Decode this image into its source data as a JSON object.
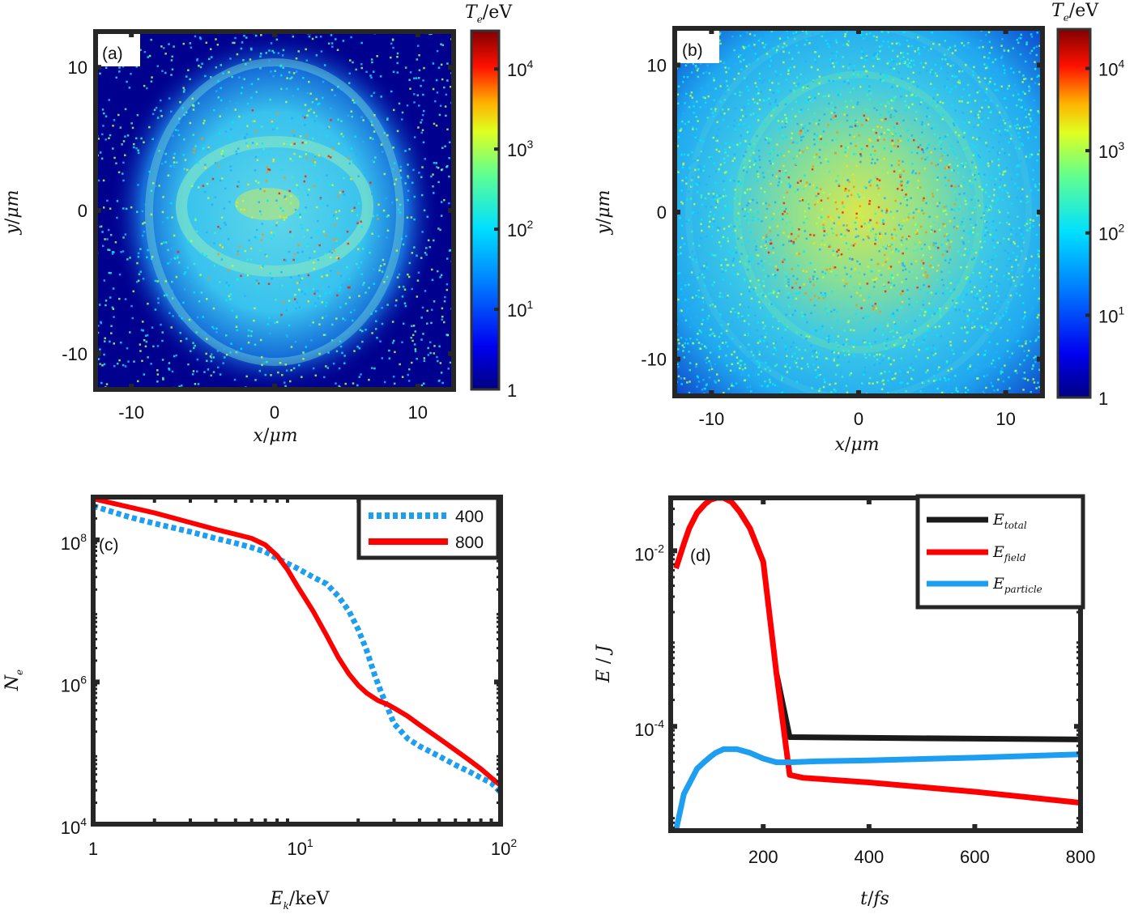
{
  "chart_data": [
    {
      "panel": "a",
      "type": "heatmap",
      "panel_label": "(a)",
      "xlabel": "x/μm",
      "ylabel": "y/μm",
      "xlim": [
        -12.5,
        12.5
      ],
      "ylim": [
        -12.5,
        12.5
      ],
      "xticks": [
        "-10",
        "0",
        "10"
      ],
      "xtick_values": [
        -10,
        0,
        10
      ],
      "yticks": [
        "10",
        "0",
        "-10"
      ],
      "ytick_values": [
        10,
        0,
        -10
      ],
      "colorbar": {
        "title": "T_e/eV",
        "scale": "log",
        "range": [
          1,
          30000
        ],
        "ticks": [
          {
            "base": "1",
            "exp": "",
            "value": 1
          },
          {
            "base": "10",
            "exp": "1",
            "value": 10
          },
          {
            "base": "10",
            "exp": "2",
            "value": 100
          },
          {
            "base": "10",
            "exp": "3",
            "value": 1000
          },
          {
            "base": "10",
            "exp": "4",
            "value": 10000
          }
        ],
        "colormap": "jet"
      },
      "description": "Electron temperature map: elliptical ring structure ~8 μm radius, mostly 10^2 eV (cyan) with scattered hot spots up to 10^4 eV; background ~1 eV (dark blue) with sparse dots",
      "features": {
        "ring_radius_x": 7.5,
        "ring_radius_y": 9.5,
        "inner_ring_radius_x": 4.5,
        "inner_ring_radius_y": 3.0,
        "typical_Te": 150,
        "background_Te": 1,
        "peak_Te": 20000
      }
    },
    {
      "panel": "b",
      "type": "heatmap",
      "panel_label": "(b)",
      "xlabel": "x/μm",
      "ylabel": "y/μm",
      "xlim": [
        -12.5,
        12.5
      ],
      "ylim": [
        -12.5,
        12.5
      ],
      "xticks": [
        "-10",
        "0",
        "10"
      ],
      "xtick_values": [
        -10,
        0,
        10
      ],
      "yticks": [
        "10",
        "0",
        "-10"
      ],
      "ytick_values": [
        10,
        0,
        -10
      ],
      "colorbar": {
        "title": "T_e/eV",
        "scale": "log",
        "range": [
          1,
          30000
        ],
        "ticks": [
          {
            "base": "1",
            "exp": "",
            "value": 1
          },
          {
            "base": "10",
            "exp": "1",
            "value": 10
          },
          {
            "base": "10",
            "exp": "2",
            "value": 100
          },
          {
            "base": "10",
            "exp": "3",
            "value": 1000
          },
          {
            "base": "10",
            "exp": "4",
            "value": 10000
          }
        ],
        "colormap": "jet"
      },
      "description": "Electron temperature map: broad heated region filling most of the box, ~10^2–10^3 eV, central hot core ~10^3–10^4 eV, concentric ring structures, darker corners",
      "features": {
        "typical_Te": 200,
        "core_Te": 3000,
        "corner_Te": 10
      }
    },
    {
      "panel": "c",
      "type": "line",
      "panel_label": "(c)",
      "xlabel": "E_k/keV",
      "ylabel": "N_e",
      "xscale": "log",
      "yscale": "log",
      "xlim": [
        1,
        100
      ],
      "ylim": [
        10000,
        400000000
      ],
      "xticks": [
        {
          "base": "1",
          "exp": "",
          "value": 1
        },
        {
          "base": "10",
          "exp": "1",
          "value": 10
        },
        {
          "base": "10",
          "exp": "2",
          "value": 100
        }
      ],
      "yticks": [
        {
          "base": "10",
          "exp": "4",
          "value": 10000
        },
        {
          "base": "10",
          "exp": "6",
          "value": 1000000
        },
        {
          "base": "10",
          "exp": "8",
          "value": 100000000
        }
      ],
      "legend_position": "top-right",
      "series": [
        {
          "name": "400",
          "color": "#1e9ef0",
          "style": "dotted",
          "x": [
            1,
            1.5,
            2,
            3,
            4,
            5,
            6,
            7,
            8,
            10,
            12,
            14,
            16,
            18,
            20,
            22,
            24,
            26,
            28,
            30,
            35,
            40,
            50,
            60,
            70,
            80,
            90,
            100
          ],
          "y": [
            300000000,
            210000000,
            170000000,
            130000000,
            105000000,
            90000000,
            78000000,
            68000000,
            55000000,
            40000000,
            30000000,
            24000000,
            16000000,
            10000000,
            5500000,
            2800000,
            1300000,
            700000,
            420000,
            260000,
            160000,
            125000,
            90000,
            68000,
            55000,
            45000,
            38000,
            28000
          ]
        },
        {
          "name": "800",
          "color": "#ff0000",
          "style": "solid",
          "x": [
            1,
            1.5,
            2,
            3,
            4,
            5,
            6,
            7,
            8,
            9,
            10,
            12,
            14,
            16,
            18,
            20,
            22,
            25,
            28,
            30,
            35,
            40,
            50,
            60,
            70,
            80,
            90,
            100
          ],
          "y": [
            380000000,
            290000000,
            240000000,
            175000000,
            140000000,
            120000000,
            105000000,
            85000000,
            60000000,
            38000000,
            23000000,
            10000000,
            4500000,
            2200000,
            1300000,
            900000,
            700000,
            550000,
            480000,
            430000,
            330000,
            250000,
            160000,
            110000,
            80000,
            60000,
            45000,
            35000
          ]
        }
      ]
    },
    {
      "panel": "d",
      "type": "line",
      "panel_label": "(d)",
      "xlabel": "t/fs",
      "ylabel": "E/J",
      "xscale": "linear",
      "yscale": "log",
      "xlim": [
        25,
        800
      ],
      "ylim": [
        6.5e-06,
        0.04
      ],
      "xticks": [
        {
          "label": "200",
          "value": 200
        },
        {
          "label": "400",
          "value": 400
        },
        {
          "label": "600",
          "value": 600
        },
        {
          "label": "800",
          "value": 800
        }
      ],
      "yticks": [
        {
          "base": "10",
          "exp": "-4",
          "value": 0.0001
        },
        {
          "base": "10",
          "exp": "-2",
          "value": 0.01
        }
      ],
      "legend_position": "top-right",
      "series": [
        {
          "name": "E_total",
          "label_main": "E",
          "label_sub": "total",
          "color": "#1a1a1a",
          "x": [
            225,
            250,
            400,
            600,
            800
          ],
          "y": [
            0.0004,
            7.55e-05,
            7.4e-05,
            7.25e-05,
            7.1e-05
          ]
        },
        {
          "name": "E_field",
          "label_main": "E",
          "label_sub": "field",
          "color": "#ff0000",
          "x": [
            35,
            50,
            60,
            75,
            90,
            100,
            112,
            125,
            140,
            155,
            175,
            200,
            225,
            250,
            275,
            400,
            600,
            800
          ],
          "y": [
            0.0063,
            0.012,
            0.018,
            0.027,
            0.034,
            0.038,
            0.04,
            0.04,
            0.036,
            0.028,
            0.018,
            0.0075,
            0.0004,
            2.8e-05,
            2.6e-05,
            2.3e-05,
            1.8e-05,
            1.35e-05
          ]
        },
        {
          "name": "E_particle",
          "label_main": "E",
          "label_sub": "particle",
          "color": "#1e9ef0",
          "x": [
            35,
            50,
            75,
            90,
            100,
            110,
            125,
            150,
            175,
            200,
            225,
            250,
            300,
            400,
            600,
            800
          ],
          "y": [
            6.5e-06,
            1.7e-05,
            3.3e-05,
            4e-05,
            4.5e-05,
            5e-05,
            5.5e-05,
            5.5e-05,
            5e-05,
            4.3e-05,
            3.9e-05,
            3.9e-05,
            4e-05,
            4.1e-05,
            4.4e-05,
            4.8e-05
          ]
        }
      ]
    }
  ]
}
